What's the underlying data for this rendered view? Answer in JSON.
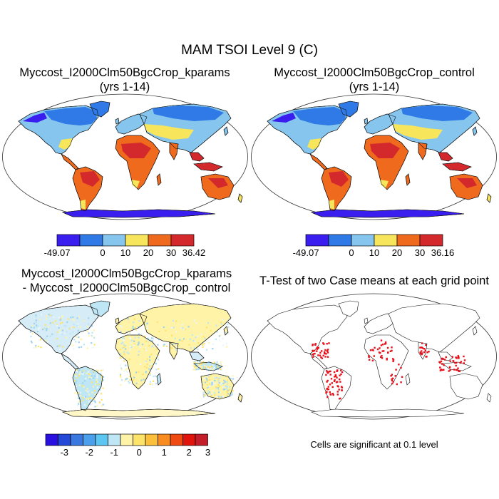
{
  "figure": {
    "title": "MAM TSOI Level 9 (C)"
  },
  "panels": [
    {
      "id": "kparams",
      "title_line1": "Myccost_I2000Clm50BgcCrop_kparams",
      "title_line2": "(yrs 1-14)",
      "colorbar": {
        "colors": [
          "#3a1ef0",
          "#2f7ae6",
          "#86c6ee",
          "#f7e55b",
          "#f06a1e",
          "#d4292c"
        ],
        "tick_labels": [
          "-49.07",
          "0",
          "10",
          "20",
          "30",
          "36.42"
        ]
      }
    },
    {
      "id": "control",
      "title_line1": "Myccost_I2000Clm50BgcCrop_control",
      "title_line2": "(yrs 1-14)",
      "colorbar": {
        "colors": [
          "#3a1ef0",
          "#2f7ae6",
          "#86c6ee",
          "#f7e55b",
          "#f06a1e",
          "#d4292c"
        ],
        "tick_labels": [
          "-49.07",
          "0",
          "10",
          "20",
          "30",
          "36.16"
        ]
      }
    },
    {
      "id": "difference",
      "title_line1": "Myccost_I2000Clm50BgcCrop_kparams",
      "title_line2": "- Myccost_I2000Clm50BgcCrop_control",
      "colorbar": {
        "colors": [
          "#2a10e0",
          "#2349d6",
          "#3a78e0",
          "#4aa0ec",
          "#5cc6f2",
          "#bfe6f4",
          "#fff3a8",
          "#fde36a",
          "#fbbf3c",
          "#f98c20",
          "#ef4a12",
          "#e1140c",
          "#c41e2a"
        ],
        "tick_labels": [
          "-3",
          "-2",
          "-1",
          "0",
          "1",
          "2",
          "3"
        ]
      }
    },
    {
      "id": "ttest",
      "title_line1": "T-Test of two Case means at each grid point",
      "note": "Cells are significant at 0.1 level",
      "significant_color": "#e8101a"
    }
  ]
}
